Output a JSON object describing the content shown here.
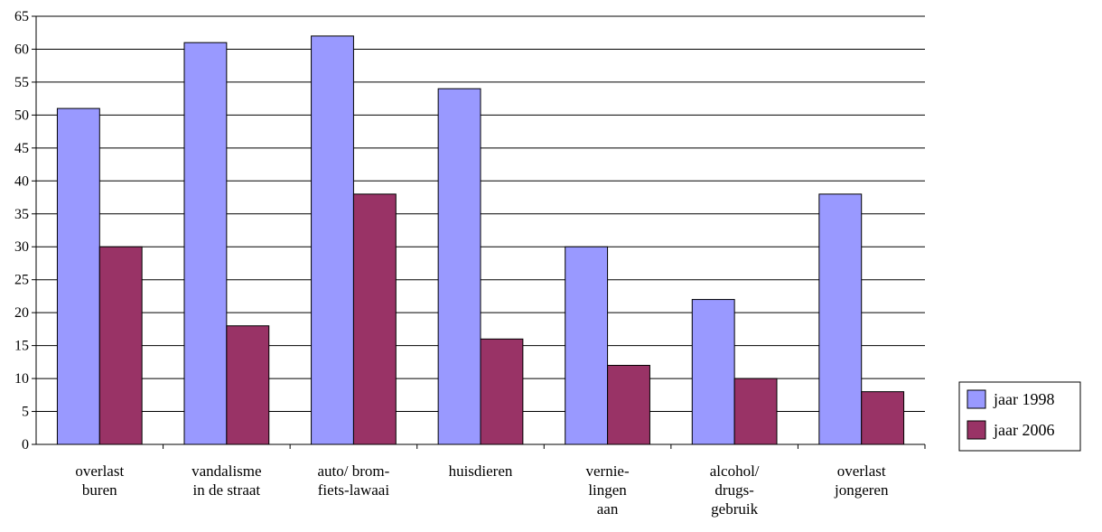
{
  "chart_data": {
    "type": "bar",
    "categories": [
      [
        "overlast",
        "buren"
      ],
      [
        "vandalisme",
        "in de straat"
      ],
      [
        "auto/ brom-",
        "fiets-lawaai"
      ],
      [
        "huisdieren"
      ],
      [
        "vernie-",
        "lingen",
        "aan"
      ],
      [
        "alcohol/",
        "drugs-",
        "gebruik"
      ],
      [
        "overlast",
        "jongeren"
      ]
    ],
    "series": [
      {
        "name": "jaar 1998",
        "color": "#9999ff",
        "values": [
          51,
          61,
          62,
          54,
          30,
          22,
          38
        ]
      },
      {
        "name": "jaar 2006",
        "color": "#993366",
        "values": [
          30,
          18,
          38,
          16,
          12,
          10,
          8
        ]
      }
    ],
    "ylim": [
      0,
      65
    ],
    "yticks": [
      0,
      5,
      10,
      15,
      20,
      25,
      30,
      35,
      40,
      45,
      50,
      55,
      60,
      65
    ],
    "grid": true,
    "legend_position": "right",
    "title": "",
    "xlabel": "",
    "ylabel": ""
  }
}
